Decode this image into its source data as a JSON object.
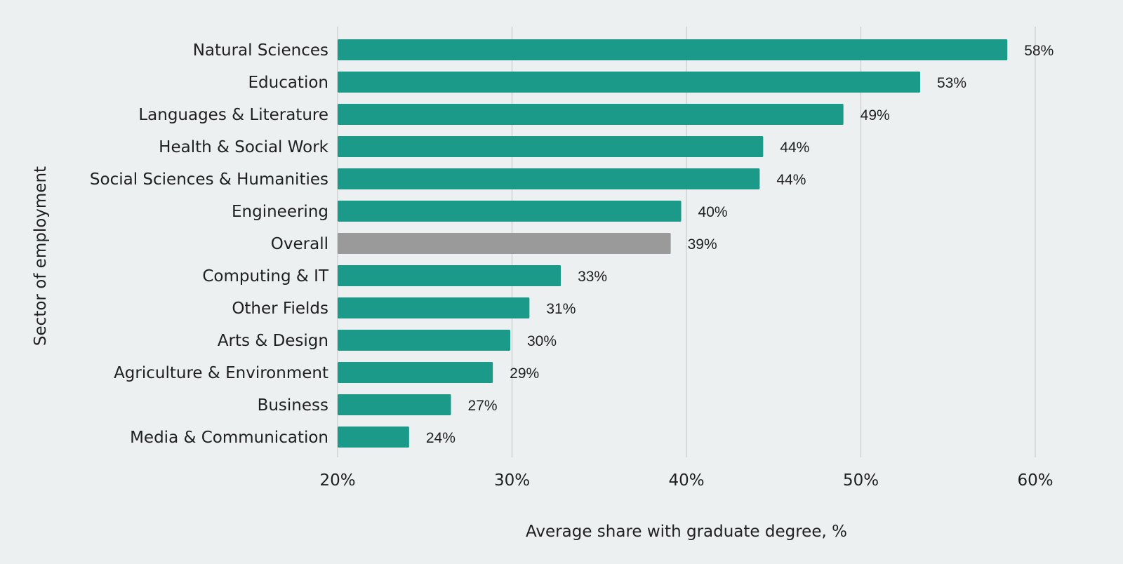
{
  "chart_data": {
    "type": "bar",
    "orientation": "horizontal",
    "categories": [
      "Natural Sciences",
      "Education",
      "Languages & Literature",
      "Health & Social Work",
      "Social Sciences & Humanities",
      "Engineering",
      "Overall",
      "Computing & IT",
      "Other Fields",
      "Arts & Design",
      "Agriculture & Environment",
      "Business",
      "Media & Communication"
    ],
    "values": [
      58.4,
      53.4,
      49.0,
      44.4,
      44.2,
      39.7,
      39.1,
      32.8,
      31.0,
      29.9,
      28.9,
      26.5,
      24.1
    ],
    "value_labels": [
      "58%",
      "53%",
      "49%",
      "44%",
      "44%",
      "40%",
      "39%",
      "33%",
      "31%",
      "30%",
      "29%",
      "27%",
      "24%"
    ],
    "highlight_category": "Overall",
    "xlabel": "Average share with graduate degree, %",
    "ylabel": "Sector of employment",
    "xlim": [
      20,
      60
    ],
    "xticks": [
      20,
      30,
      40,
      50,
      60
    ],
    "xtick_labels": [
      "20%",
      "30%",
      "40%",
      "50%",
      "60%"
    ],
    "grid": "vertical",
    "colors": {
      "bar": "#1b9a8a",
      "highlight": "#9a9a9a",
      "background": "#ecf0f0",
      "grid": "#c8cccc",
      "text": "#1f1f1f"
    }
  }
}
